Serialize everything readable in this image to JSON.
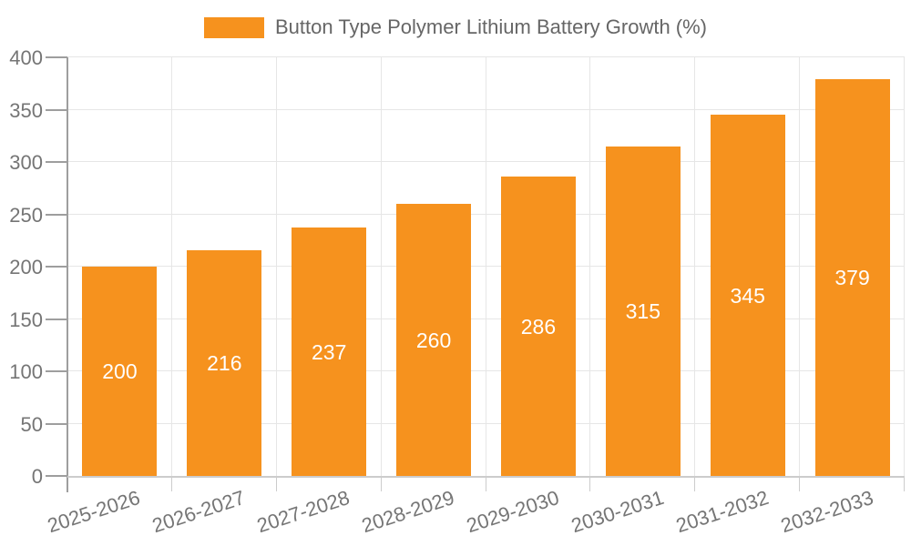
{
  "legend": {
    "label": "Button Type Polymer Lithium Battery Growth (%)"
  },
  "chart_data": {
    "type": "bar",
    "title": "",
    "series_name": "Button Type Polymer Lithium Battery Growth (%)",
    "categories": [
      "2025-2026",
      "2026-2027",
      "2027-2028",
      "2028-2029",
      "2029-2030",
      "2030-2031",
      "2031-2032",
      "2032-2033"
    ],
    "values": [
      200,
      216,
      237,
      260,
      286,
      315,
      345,
      379
    ],
    "xlabel": "",
    "ylabel": "",
    "ylim": [
      0,
      400
    ],
    "yticks": [
      0,
      50,
      100,
      150,
      200,
      250,
      300,
      350,
      400
    ],
    "grid": true,
    "legend_position": "top",
    "bar_labels_inside": true
  },
  "colors": {
    "bar": "#F6921E",
    "grid": "#E6E6E6",
    "axis_y": "#9E9E9E",
    "axis_x": "#CCCCCC",
    "tick_label": "#757575",
    "legend_text": "#666666",
    "value_label": "#FFFFFF"
  }
}
